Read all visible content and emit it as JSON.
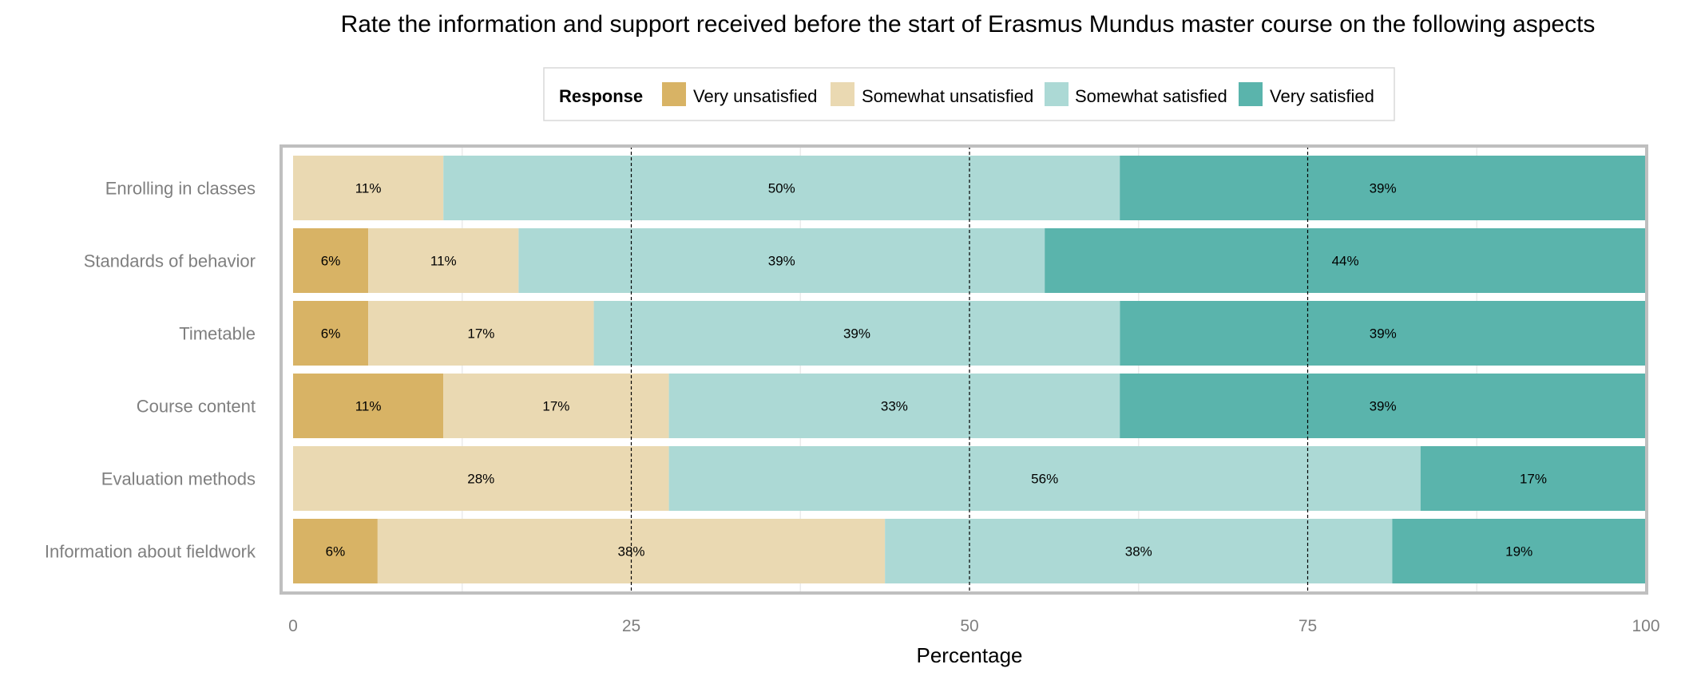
{
  "chart_data": {
    "type": "bar",
    "orientation": "horizontal",
    "stacked": true,
    "title": "Rate the information and support received before the start of Erasmus Mundus master course on the following aspects",
    "xlabel": "Percentage",
    "ylabel": "",
    "xlim": [
      0,
      100
    ],
    "xticks": [
      0,
      25,
      50,
      75,
      100
    ],
    "grid": true,
    "reference_lines": [
      25,
      50,
      75
    ],
    "legend": {
      "title": "Response",
      "position": "top"
    },
    "categories": [
      "Enrolling in classes",
      "Standards of behavior",
      "Timetable",
      "Course content",
      "Evaluation methods",
      "Information about fieldwork"
    ],
    "series": [
      {
        "name": "Very unsatisfied",
        "color": "#d8b365",
        "values": [
          0,
          5.56,
          5.56,
          11.11,
          0,
          6.25
        ]
      },
      {
        "name": "Somewhat unsatisfied",
        "color": "#ead9b2",
        "values": [
          11.11,
          11.11,
          16.67,
          16.67,
          27.78,
          37.5
        ]
      },
      {
        "name": "Somewhat satisfied",
        "color": "#acd9d5",
        "values": [
          50,
          38.89,
          38.89,
          33.33,
          55.56,
          37.5
        ]
      },
      {
        "name": "Very satisfied",
        "color": "#5ab4ac",
        "values": [
          38.89,
          44.44,
          38.89,
          38.89,
          16.67,
          18.75
        ]
      }
    ],
    "data_labels": [
      [
        "",
        "11%",
        "50%",
        "39%"
      ],
      [
        "6%",
        "11%",
        "39%",
        "44%"
      ],
      [
        "6%",
        "17%",
        "39%",
        "39%"
      ],
      [
        "11%",
        "17%",
        "33%",
        "39%"
      ],
      [
        "",
        "28%",
        "56%",
        "17%"
      ],
      [
        "6%",
        "38%",
        "38%",
        "19%"
      ]
    ]
  }
}
